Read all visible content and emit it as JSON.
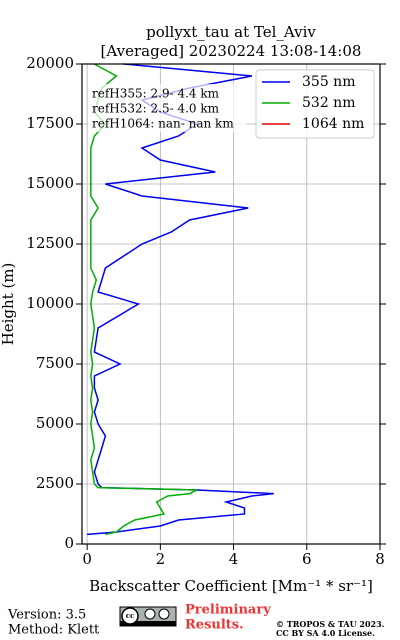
{
  "chart_data": {
    "type": "line",
    "title": [
      "pollyxt_tau at Tel_Aviv",
      "[Averaged] 20230224 13:08-14:08"
    ],
    "xlabel": "Backscatter Coefficient [Mm⁻¹ * sr⁻¹]",
    "ylabel": "Height (m)",
    "y": [
      400,
      500,
      750,
      1000,
      1250,
      1500,
      1750,
      2000,
      2100,
      2250,
      2350,
      2500,
      3000,
      3500,
      4000,
      4500,
      5000,
      5500,
      6000,
      6500,
      7000,
      7500,
      8000,
      9000,
      10000,
      10500,
      11000,
      11500,
      12000,
      12500,
      13000,
      13500,
      14000,
      14500,
      15000,
      15500,
      16000,
      16500,
      17000,
      17500,
      18000,
      18500,
      19000,
      19500,
      20000
    ],
    "series": [
      {
        "name": "355 nm",
        "color": "#0000ee",
        "values": [
          0,
          0.8,
          2.0,
          2.5,
          4.3,
          4.3,
          3.8,
          4.5,
          5.1,
          3.0,
          0.4,
          0.3,
          0.2,
          0.3,
          0.4,
          0.5,
          0.3,
          0.2,
          0.3,
          0.2,
          0.2,
          0.9,
          0.2,
          0.3,
          1.4,
          0.3,
          0.4,
          0.5,
          1.0,
          1.5,
          2.3,
          2.8,
          4.4,
          1.5,
          0.5,
          3.5,
          2.0,
          1.5,
          2.5,
          3.0,
          2.0,
          1.5,
          2.8,
          4.5,
          1.0
        ]
      },
      {
        "name": "532 nm",
        "color": "#00b000",
        "values": [
          0.5,
          0.8,
          1.0,
          1.3,
          2.1,
          2.0,
          1.9,
          2.2,
          2.8,
          3.0,
          0.3,
          0.2,
          0.15,
          0.1,
          0.2,
          0.15,
          0.1,
          0.15,
          0.1,
          0.15,
          0.1,
          0.15,
          0.1,
          0.2,
          0.1,
          0.15,
          0.25,
          0.1,
          0.1,
          0.1,
          0.1,
          0.1,
          0.3,
          0.1,
          0.1,
          0.1,
          0.1,
          0.1,
          0.2,
          0.5,
          0.2,
          0.3,
          0.4,
          0.8,
          0.2
        ]
      },
      {
        "name": "1064 nm",
        "color": "#dd0000",
        "values": [
          null,
          null,
          null,
          null,
          null,
          null,
          null,
          null,
          null,
          null,
          null,
          null,
          null,
          null,
          null,
          null,
          null,
          null,
          null,
          null,
          null,
          null,
          null,
          null,
          null,
          null,
          null,
          null,
          null,
          null,
          null,
          null,
          null,
          null,
          null,
          null,
          null,
          null,
          null,
          null,
          null,
          null,
          null,
          null,
          null
        ]
      }
    ],
    "annotations": [
      "refH355:  2.9- 4.4 km",
      "refH532:  2.5- 4.0 km",
      "refH1064:  nan- nan km"
    ],
    "xlim": [
      -0.14,
      8
    ],
    "ylim": [
      0,
      20000
    ],
    "xticks": [
      0,
      2,
      4,
      6,
      8
    ],
    "yticks": [
      0,
      2500,
      5000,
      7500,
      10000,
      12500,
      15000,
      17500,
      20000
    ],
    "grid": true,
    "legend": "upper right"
  },
  "footer": {
    "version": "Version: 3.5",
    "method": "Method: Klett",
    "status": [
      "Preliminary",
      "Results."
    ],
    "copyright": [
      "© TROPOS & TAU 2023.",
      "CC BY SA 4.0 License."
    ]
  }
}
